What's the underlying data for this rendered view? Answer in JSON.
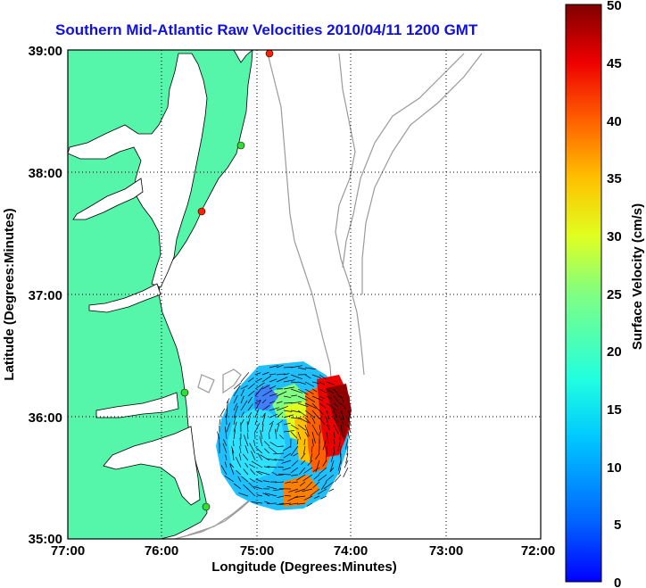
{
  "title": "Southern Mid-Atlantic Raw Velocities 2010/04/11 1200 GMT",
  "map": {
    "x_label": "Longitude (Degrees:Minutes)",
    "y_label": "Latitude (Degrees:Minutes)",
    "x_ticks": [
      "77:00",
      "76:00",
      "75:00",
      "74:00",
      "73:00",
      "72:00"
    ],
    "y_ticks": [
      "39:00",
      "38:00",
      "37:00",
      "36:00",
      "35:00"
    ],
    "land_color": "#55f5aa",
    "water_color": "#ffffff",
    "bathymetry_color": "#9a9a9a",
    "grid": "dotted",
    "station_markers": [
      {
        "color": "#ff2200"
      },
      {
        "color": "#33dd33"
      },
      {
        "color": "#ff2200"
      },
      {
        "color": "#33dd33"
      },
      {
        "color": "#33dd33"
      }
    ]
  },
  "colorbar": {
    "label": "Surface Velocity (cm/s)",
    "ticks": [
      "50",
      "45",
      "40",
      "35",
      "30",
      "25",
      "20",
      "15",
      "10",
      "5",
      "0"
    ],
    "range": [
      0,
      50
    ],
    "colormap": "jet"
  }
}
